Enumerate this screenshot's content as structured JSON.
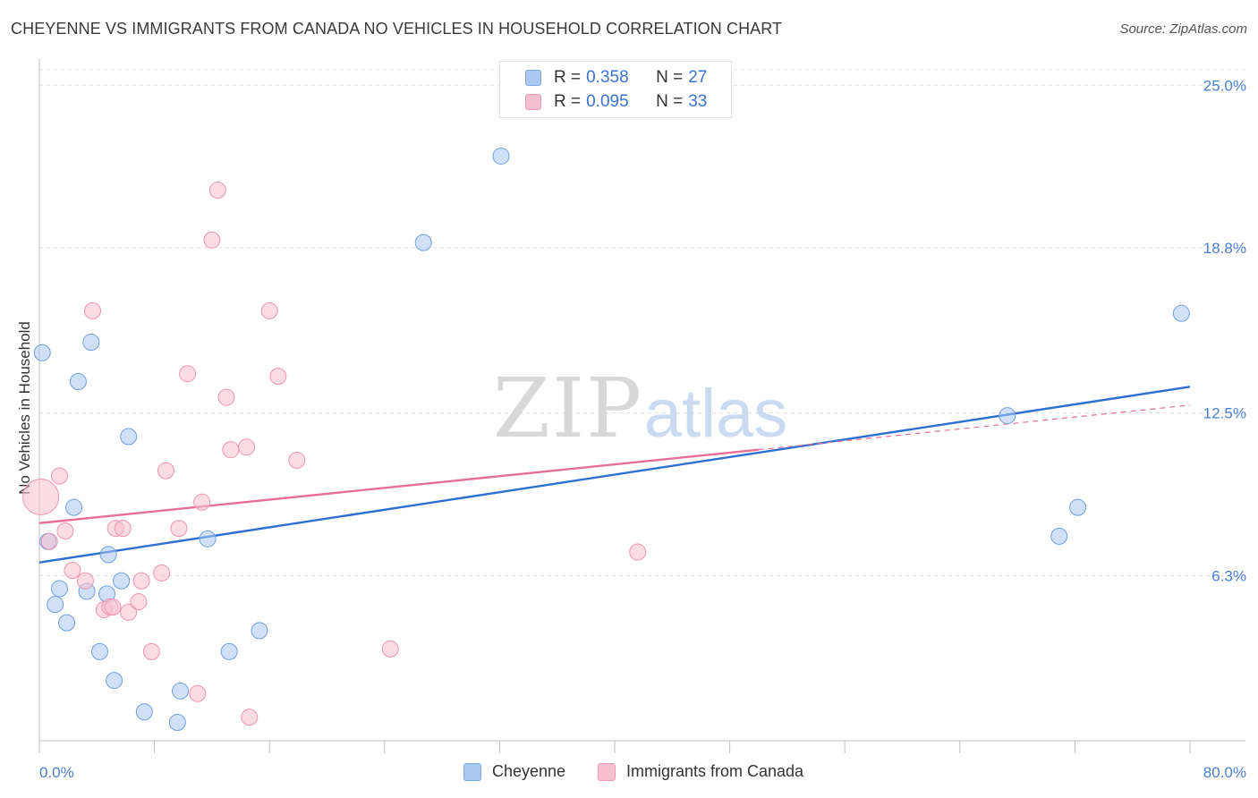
{
  "title": "CHEYENNE VS IMMIGRANTS FROM CANADA NO VEHICLES IN HOUSEHOLD CORRELATION CHART",
  "source": "Source: ZipAtlas.com",
  "watermark": {
    "zip": "ZIP",
    "atlas": "atlas"
  },
  "legend_top": {
    "rows": [
      {
        "r_label": "R = ",
        "r_value": "0.358",
        "n_label": "N = ",
        "n_value": "27",
        "color": "#a9c8f0",
        "border": "#7ea9e0"
      },
      {
        "r_label": "R = ",
        "r_value": "0.095",
        "n_label": "N = ",
        "n_value": "33",
        "color": "#f7bfd0",
        "border": "#ee9ab5"
      }
    ]
  },
  "chart_data": {
    "type": "scatter",
    "title": "CHEYENNE VS IMMIGRANTS FROM CANADA NO VEHICLES IN HOUSEHOLD CORRELATION CHART",
    "xlabel": "",
    "ylabel": "No Vehicles in Household",
    "xlim": [
      0,
      80
    ],
    "ylim": [
      0,
      26
    ],
    "x_tick_labels": [
      "0.0%",
      "80.0%"
    ],
    "y_ticks": [
      6.3,
      12.5,
      18.8,
      25.0
    ],
    "y_tick_labels": [
      "6.3%",
      "12.5%",
      "18.8%",
      "25.0%"
    ],
    "grid": true,
    "legend_position": "top-center",
    "series": [
      {
        "name": "Cheyenne",
        "color": "#a9c8f0",
        "edge": "#6f9fde",
        "line_color": "#2e6fd0",
        "trend": {
          "x": [
            0,
            80
          ],
          "y": [
            6.8,
            13.5
          ]
        },
        "points": [
          {
            "x": 0.2,
            "y": 14.8,
            "s": 9
          },
          {
            "x": 0.6,
            "y": 7.6,
            "s": 9
          },
          {
            "x": 1.1,
            "y": 5.2,
            "s": 9
          },
          {
            "x": 1.4,
            "y": 5.8,
            "s": 9
          },
          {
            "x": 1.9,
            "y": 4.5,
            "s": 9
          },
          {
            "x": 2.4,
            "y": 8.9,
            "s": 9
          },
          {
            "x": 2.7,
            "y": 13.7,
            "s": 9
          },
          {
            "x": 3.3,
            "y": 5.7,
            "s": 9
          },
          {
            "x": 3.6,
            "y": 15.2,
            "s": 9
          },
          {
            "x": 4.2,
            "y": 3.4,
            "s": 9
          },
          {
            "x": 4.7,
            "y": 5.6,
            "s": 9
          },
          {
            "x": 4.8,
            "y": 7.1,
            "s": 9
          },
          {
            "x": 5.2,
            "y": 2.3,
            "s": 9
          },
          {
            "x": 5.7,
            "y": 6.1,
            "s": 9
          },
          {
            "x": 6.2,
            "y": 11.6,
            "s": 9
          },
          {
            "x": 7.3,
            "y": 1.1,
            "s": 9
          },
          {
            "x": 9.6,
            "y": 0.7,
            "s": 9
          },
          {
            "x": 9.8,
            "y": 1.9,
            "s": 9
          },
          {
            "x": 11.7,
            "y": 7.7,
            "s": 9
          },
          {
            "x": 13.2,
            "y": 3.4,
            "s": 9
          },
          {
            "x": 15.3,
            "y": 4.2,
            "s": 9
          },
          {
            "x": 26.7,
            "y": 19.0,
            "s": 9
          },
          {
            "x": 32.1,
            "y": 22.3,
            "s": 9
          },
          {
            "x": 67.3,
            "y": 12.4,
            "s": 9
          },
          {
            "x": 70.9,
            "y": 7.8,
            "s": 9
          },
          {
            "x": 72.2,
            "y": 8.9,
            "s": 9
          },
          {
            "x": 79.4,
            "y": 16.3,
            "s": 9
          }
        ]
      },
      {
        "name": "Immigrants from Canada",
        "color": "#f7bfd0",
        "edge": "#ee94b1",
        "line_color": "#e56f98",
        "trend": {
          "x": [
            0,
            50
          ],
          "y": [
            8.3,
            11.1
          ]
        },
        "trend_dashed": {
          "x": [
            50,
            80
          ],
          "y": [
            11.1,
            12.8
          ]
        },
        "points": [
          {
            "x": 0.1,
            "y": 9.3,
            "s": 20
          },
          {
            "x": 0.7,
            "y": 7.6,
            "s": 9
          },
          {
            "x": 1.4,
            "y": 10.1,
            "s": 9
          },
          {
            "x": 1.8,
            "y": 8.0,
            "s": 9
          },
          {
            "x": 2.3,
            "y": 6.5,
            "s": 9
          },
          {
            "x": 3.2,
            "y": 6.1,
            "s": 9
          },
          {
            "x": 3.7,
            "y": 16.4,
            "s": 9
          },
          {
            "x": 4.5,
            "y": 5.0,
            "s": 9
          },
          {
            "x": 4.9,
            "y": 5.1,
            "s": 9
          },
          {
            "x": 5.1,
            "y": 5.1,
            "s": 9
          },
          {
            "x": 5.3,
            "y": 8.1,
            "s": 9
          },
          {
            "x": 5.8,
            "y": 8.1,
            "s": 9
          },
          {
            "x": 6.2,
            "y": 4.9,
            "s": 9
          },
          {
            "x": 6.9,
            "y": 5.3,
            "s": 9
          },
          {
            "x": 7.1,
            "y": 6.1,
            "s": 9
          },
          {
            "x": 7.8,
            "y": 3.4,
            "s": 9
          },
          {
            "x": 8.5,
            "y": 6.4,
            "s": 9
          },
          {
            "x": 8.8,
            "y": 10.3,
            "s": 9
          },
          {
            "x": 9.7,
            "y": 8.1,
            "s": 9
          },
          {
            "x": 10.3,
            "y": 14.0,
            "s": 9
          },
          {
            "x": 11.0,
            "y": 1.8,
            "s": 9
          },
          {
            "x": 11.3,
            "y": 9.1,
            "s": 9
          },
          {
            "x": 12.0,
            "y": 19.1,
            "s": 9
          },
          {
            "x": 12.4,
            "y": 21.0,
            "s": 9
          },
          {
            "x": 13.0,
            "y": 13.1,
            "s": 9
          },
          {
            "x": 13.3,
            "y": 11.1,
            "s": 9
          },
          {
            "x": 14.4,
            "y": 11.2,
            "s": 9
          },
          {
            "x": 14.6,
            "y": 0.9,
            "s": 9
          },
          {
            "x": 16.0,
            "y": 16.4,
            "s": 9
          },
          {
            "x": 16.6,
            "y": 13.9,
            "s": 9
          },
          {
            "x": 17.9,
            "y": 10.7,
            "s": 9
          },
          {
            "x": 24.4,
            "y": 3.5,
            "s": 9
          },
          {
            "x": 41.6,
            "y": 7.2,
            "s": 9
          }
        ]
      }
    ]
  }
}
